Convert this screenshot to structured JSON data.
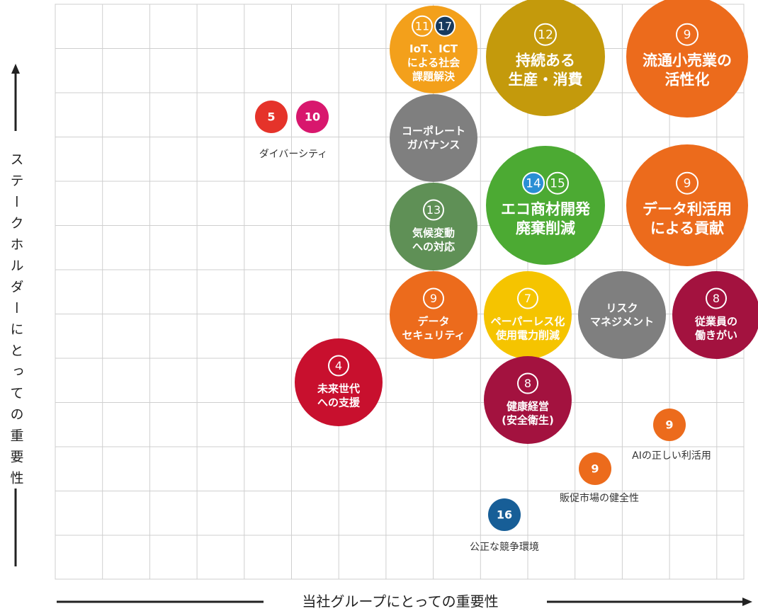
{
  "axes": {
    "y_label": "ステークホルダーにとっての重要性",
    "x_label": "当社グループにとっての重要性"
  },
  "items": [
    {
      "numbers": [
        "11",
        "17"
      ],
      "label": [
        "IoT、ICT",
        "による社会",
        "課題解決"
      ]
    },
    {
      "numbers": [
        "12"
      ],
      "label": [
        "持続ある",
        "生産・消費"
      ]
    },
    {
      "numbers": [
        "9"
      ],
      "label": [
        "流通小売業の",
        "活性化"
      ]
    },
    {
      "numbers": [],
      "label": [
        "コーポレート",
        "ガバナンス"
      ]
    },
    {
      "numbers": [
        "14",
        "15"
      ],
      "label": [
        "エコ商材開発",
        "廃棄削減"
      ]
    },
    {
      "numbers": [
        "9"
      ],
      "label": [
        "データ利活用",
        "による貢献"
      ]
    },
    {
      "numbers": [
        "13"
      ],
      "label": [
        "気候変動",
        "への対応"
      ]
    },
    {
      "numbers": [
        "9"
      ],
      "label": [
        "データ",
        "セキュリティ"
      ]
    },
    {
      "numbers": [
        "7"
      ],
      "label": [
        "ペーパーレス化",
        "使用電力削減"
      ]
    },
    {
      "numbers": [],
      "label": [
        "リスク",
        "マネジメント"
      ]
    },
    {
      "numbers": [
        "8"
      ],
      "label": [
        "従業員の",
        "働きがい"
      ]
    },
    {
      "numbers": [
        "4"
      ],
      "label": [
        "未来世代",
        "への支援"
      ]
    },
    {
      "numbers": [
        "8"
      ],
      "label": [
        "健康経営",
        "(安全衛生)"
      ]
    }
  ],
  "small_items": [
    {
      "numbers": [
        "5",
        "10"
      ],
      "label": "ダイバーシティ"
    },
    {
      "numbers": [
        "9"
      ],
      "label": "AIの正しい利活用"
    },
    {
      "numbers": [
        "9"
      ],
      "label": "販促市場の健全性"
    },
    {
      "numbers": [
        "16"
      ],
      "label": "公正な競争環境"
    }
  ]
}
